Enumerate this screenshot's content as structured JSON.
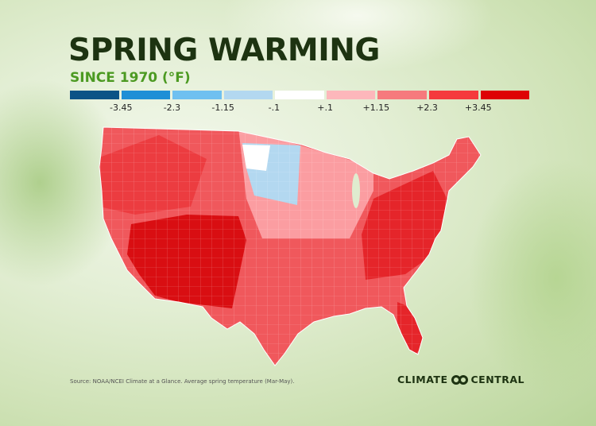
{
  "title": "SPRING WARMING",
  "subtitle": "SINCE 1970 (°F)",
  "legend": {
    "colors": [
      "#0b5386",
      "#1e8fd6",
      "#6fc0f0",
      "#b3d8f0",
      "#ffffff",
      "#fdb7bb",
      "#f67a7d",
      "#f53a3d",
      "#de0204"
    ],
    "ticks": [
      "-3.45",
      "-2.3",
      "-1.15",
      "-.1",
      "+.1",
      "+1.15",
      "+2.3",
      "+3.45"
    ]
  },
  "source": "Source: NOAA/NCEI Climate at a Glance. Average spring temperature (Mar-May).",
  "logo": {
    "left": "CLIMATE",
    "right": "CENTRAL"
  }
}
